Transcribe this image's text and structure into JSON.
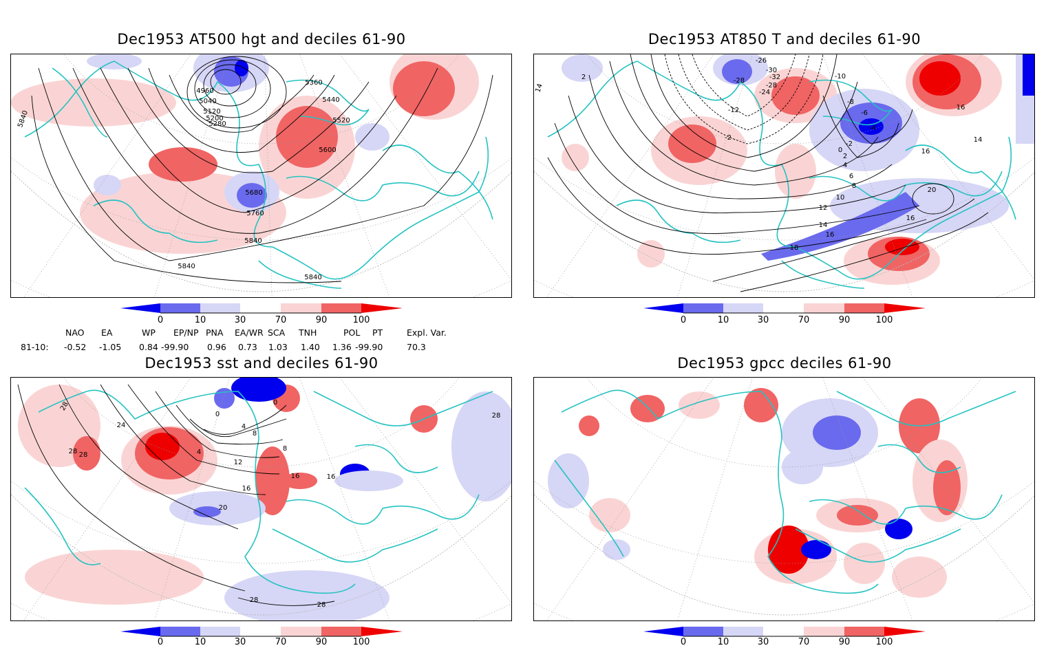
{
  "panels": [
    {
      "title": "Dec1953 AT500 hgt and deciles 61-90",
      "contour_labels": [
        "4960",
        "5040",
        "5120",
        "5200",
        "5280",
        "5360",
        "5440",
        "5520",
        "5600",
        "5680",
        "5760",
        "5840",
        "5840",
        "5840",
        "5840"
      ]
    },
    {
      "title": "Dec1953 AT850 T and deciles 61-90",
      "contour_labels": [
        "-26",
        "-28",
        "-30",
        "-32",
        "-28",
        "-24",
        "-12",
        "-2",
        "2",
        "4",
        "6",
        "8",
        "10",
        "12",
        "14",
        "16",
        "18",
        "20",
        "16",
        "16",
        "16",
        "14",
        "-10",
        "-8",
        "-6",
        "-4",
        "-2",
        "0",
        "2",
        "14"
      ]
    },
    {
      "title": "Dec1953 sst and deciles 61-90",
      "contour_labels": [
        "28",
        "28",
        "28",
        "24",
        "20",
        "16",
        "16",
        "16",
        "12",
        "8",
        "8",
        "4",
        "4",
        "0",
        "0",
        "28",
        "28",
        "28"
      ]
    },
    {
      "title": "Dec1953 gpcc deciles 61-90",
      "contour_labels": []
    }
  ],
  "colorbar": {
    "tick_labels": [
      "0",
      "10",
      "30",
      "70",
      "90",
      "100"
    ],
    "colors": [
      "#0000ee",
      "#6a6aee",
      "#d6d6f6",
      "#ffffff",
      "#fad4d4",
      "#f06464",
      "#ee0000"
    ]
  },
  "indices": {
    "row_label": "81-10:",
    "items": [
      {
        "name": "NAO",
        "value": "-0.52"
      },
      {
        "name": "EA",
        "value": "-1.05"
      },
      {
        "name": "WP",
        "value": "0.84"
      },
      {
        "name": "EP/NP",
        "value": "-99.90"
      },
      {
        "name": "PNA",
        "value": "0.96"
      },
      {
        "name": "EA/WR",
        "value": "0.73"
      },
      {
        "name": "SCA",
        "value": "1.03"
      },
      {
        "name": "TNH",
        "value": "1.40"
      },
      {
        "name": "POL",
        "value": "1.36"
      },
      {
        "name": "PT",
        "value": "-99.90"
      },
      {
        "name": "Expl. Var.",
        "value": "70.3"
      }
    ]
  }
}
